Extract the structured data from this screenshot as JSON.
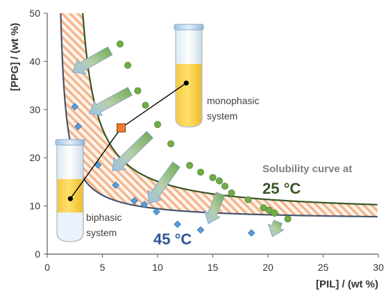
{
  "chart_data": {
    "type": "scatter",
    "xlabel": "[PIL] / (wt %)",
    "ylabel": "[PPG] / (wt %)",
    "xlim": [
      0,
      30
    ],
    "ylim": [
      0,
      50
    ],
    "xticks": [
      0,
      5,
      10,
      15,
      20,
      25,
      30
    ],
    "yticks": [
      0,
      10,
      20,
      30,
      40,
      50
    ],
    "grid": false,
    "series": [
      {
        "marker": "circle",
        "color": "#70ad47",
        "x": [
          6.6,
          7.3,
          8.2,
          8.9,
          10.0,
          11.2,
          12.9,
          13.9,
          15.0,
          15.6,
          16.1,
          16.7,
          18.2,
          19.6,
          20.1,
          20.6,
          21.8
        ],
        "y": [
          43.6,
          39.2,
          33.9,
          30.9,
          26.9,
          22.9,
          18.4,
          17.0,
          15.9,
          15.2,
          14.1,
          12.7,
          11.3,
          9.6,
          9.1,
          8.5,
          7.3
        ]
      },
      {
        "marker": "diamond",
        "color": "#5b9bd5",
        "x": [
          2.5,
          2.8,
          4.6,
          6.2,
          7.9,
          8.8,
          9.9,
          11.8,
          13.9,
          18.5
        ],
        "y": [
          30.6,
          26.5,
          18.5,
          14.3,
          11.1,
          10.3,
          8.8,
          6.2,
          5.0,
          4.4
        ]
      }
    ],
    "curves": [
      {
        "name": "25 °C",
        "color": "#375623",
        "a": 8.3,
        "b": 1.9,
        "k": 55.0
      },
      {
        "name": "45 °C",
        "color": "#44546a",
        "a": 7.0,
        "b": 0.7,
        "k": 22.5
      }
    ],
    "tie_line": {
      "points": [
        [
          2.1,
          11.5
        ],
        [
          6.7,
          26.2
        ],
        [
          12.6,
          35.5
        ]
      ],
      "mixture_point_color": "#ed7d31"
    },
    "arrows": [
      {
        "from": [
          5.7,
          42.2
        ],
        "to": [
          2.3,
          37.8
        ]
      },
      {
        "from": [
          7.5,
          33.8
        ],
        "to": [
          3.8,
          29.2
        ]
      },
      {
        "from": [
          9.3,
          24.8
        ],
        "to": [
          5.9,
          17.3
        ]
      },
      {
        "from": [
          11.7,
          18.6
        ],
        "to": [
          9.2,
          10.5
        ]
      },
      {
        "from": [
          15.7,
          12.5
        ],
        "to": [
          14.6,
          6.3
        ]
      },
      {
        "from": [
          20.9,
          6.7
        ],
        "to": [
          20.4,
          3.6
        ]
      }
    ],
    "annotations": {
      "monophasic": "monophasic\nsystem",
      "biphasic": "biphasic\nsystem",
      "curve_caption": "Solubility curve at",
      "temp_high_25": "25 °C",
      "temp_45": "45 °C"
    }
  }
}
